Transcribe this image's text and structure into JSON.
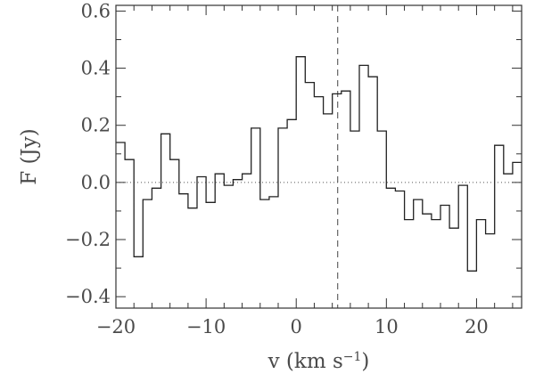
{
  "chart_data": {
    "type": "line",
    "step": true,
    "xlabel_base": "v (km s",
    "xlabel_sup": "−1",
    "xlabel_close": ")",
    "ylabel": "F (Jy)",
    "xlim": [
      -20,
      25
    ],
    "ylim": [
      -0.44,
      0.62
    ],
    "xticks": [
      -20,
      -10,
      0,
      10,
      20
    ],
    "xtick_labels": [
      "−20",
      "−10",
      "0",
      "10",
      "20"
    ],
    "yticks": [
      -0.4,
      -0.2,
      0.0,
      0.2,
      0.4,
      0.6
    ],
    "ytick_labels": [
      "−0.4",
      "−0.2",
      "0.0",
      "0.2",
      "0.4",
      "0.6"
    ],
    "bin_edges": [
      -20.0,
      -19.0,
      -18.0,
      -17.0,
      -16.0,
      -15.0,
      -14.0,
      -13.0,
      -12.0,
      -11.0,
      -10.0,
      -9.0,
      -8.0,
      -7.0,
      -6.0,
      -5.0,
      -4.0,
      -3.0,
      -2.0,
      -1.0,
      0.0,
      1.0,
      2.0,
      3.0,
      4.0,
      5.0,
      6.0,
      7.0,
      8.0,
      9.0,
      10.0,
      11.0,
      12.0,
      13.0,
      14.0,
      15.0,
      16.0,
      17.0,
      18.0,
      19.0,
      20.0,
      21.0,
      22.0,
      23.0,
      24.0,
      25.0
    ],
    "values": [
      0.14,
      0.08,
      -0.26,
      -0.06,
      -0.02,
      0.17,
      0.08,
      -0.04,
      -0.09,
      0.02,
      -0.07,
      0.03,
      -0.01,
      0.01,
      0.03,
      0.19,
      -0.06,
      -0.05,
      0.19,
      0.22,
      0.44,
      0.35,
      0.3,
      0.24,
      0.31,
      0.32,
      0.18,
      0.41,
      0.37,
      0.18,
      -0.02,
      -0.03,
      -0.13,
      -0.06,
      -0.11,
      -0.13,
      -0.08,
      -0.16,
      -0.01,
      -0.31,
      -0.13,
      -0.18,
      0.13,
      0.03,
      0.07
    ],
    "zero_line": 0.0,
    "vertical_marker_x": 4.6,
    "grid": false
  }
}
